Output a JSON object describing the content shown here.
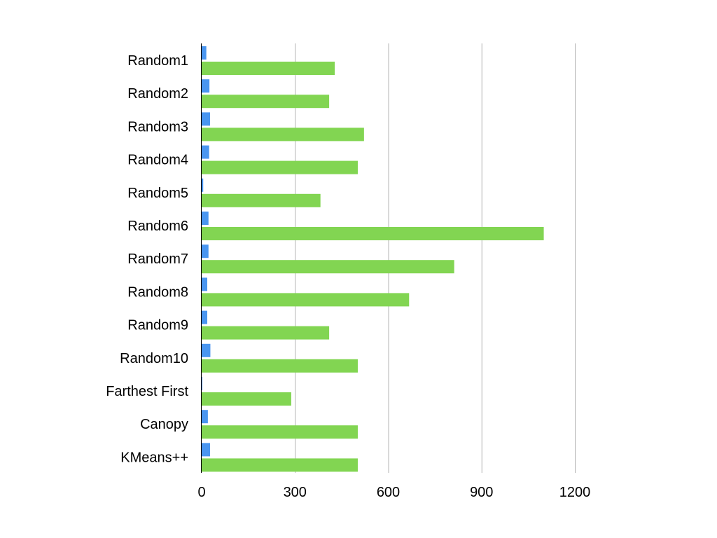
{
  "chart_data": {
    "type": "bar",
    "orientation": "horizontal",
    "title": "",
    "xlabel": "",
    "ylabel": "",
    "categories": [
      "Random1",
      "Random2",
      "Random3",
      "Random4",
      "Random5",
      "Random6",
      "Random7",
      "Random8",
      "Random9",
      "Random10",
      "Farthest First",
      "Canopy",
      "KMeans++"
    ],
    "series": [
      {
        "color": "#4a96f0",
        "values": [
          15,
          25,
          27,
          24,
          5,
          22,
          22,
          18,
          18,
          28,
          2,
          20,
          27
        ]
      },
      {
        "color": "#82d552",
        "values": [
          428,
          410,
          522,
          502,
          382,
          1100,
          812,
          667,
          410,
          502,
          288,
          502,
          502
        ]
      }
    ],
    "xlim": [
      0,
      1200
    ],
    "xticks": [
      "0",
      "300",
      "600",
      "900",
      "1200"
    ],
    "grid": "vertical",
    "legend": "none"
  }
}
